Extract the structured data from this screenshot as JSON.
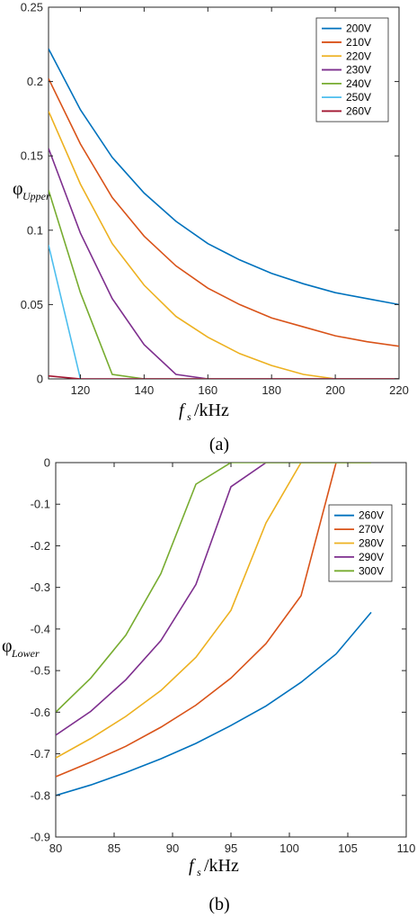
{
  "chart_data": [
    {
      "type": "line",
      "caption": "(a)",
      "ylabel_main": "φ",
      "ylabel_sub": "Upper",
      "xlabel_main": "f",
      "xlabel_sub": "s",
      "xlabel_unit": "/kHz",
      "xlim": [
        110,
        220
      ],
      "ylim": [
        0,
        0.25
      ],
      "xticks": [
        120,
        140,
        160,
        180,
        200,
        220
      ],
      "yticks": [
        0,
        0.05,
        0.1,
        0.15,
        0.2,
        0.25
      ],
      "xtick_labels": [
        "120",
        "140",
        "160",
        "180",
        "200",
        "220"
      ],
      "ytick_labels": [
        "0",
        "0.05",
        "0.1",
        "0.15",
        "0.2",
        "0.25"
      ],
      "legend_position": "top-right",
      "grid": false,
      "series": [
        {
          "name": "200V",
          "color": "#0072BD",
          "x": [
            110,
            120,
            130,
            140,
            150,
            160,
            170,
            180,
            190,
            200,
            210,
            220
          ],
          "y": [
            0.222,
            0.181,
            0.149,
            0.125,
            0.106,
            0.091,
            0.08,
            0.071,
            0.064,
            0.058,
            0.054,
            0.05
          ]
        },
        {
          "name": "210V",
          "color": "#D95319",
          "x": [
            110,
            120,
            130,
            140,
            150,
            160,
            170,
            180,
            190,
            200,
            210,
            220
          ],
          "y": [
            0.202,
            0.158,
            0.122,
            0.096,
            0.076,
            0.061,
            0.05,
            0.041,
            0.035,
            0.029,
            0.025,
            0.022
          ]
        },
        {
          "name": "220V",
          "color": "#EDB120",
          "x": [
            110,
            120,
            130,
            140,
            150,
            160,
            170,
            180,
            190,
            200,
            210,
            220
          ],
          "y": [
            0.18,
            0.131,
            0.091,
            0.063,
            0.042,
            0.028,
            0.017,
            0.009,
            0.003,
            0,
            0,
            0
          ]
        },
        {
          "name": "230V",
          "color": "#7E2F8E",
          "x": [
            110,
            120,
            130,
            140,
            150,
            160,
            170,
            180,
            190,
            200,
            210,
            220
          ],
          "y": [
            0.155,
            0.098,
            0.054,
            0.023,
            0.003,
            0,
            0,
            0,
            0,
            0,
            0,
            0
          ]
        },
        {
          "name": "240V",
          "color": "#77AC30",
          "x": [
            110,
            120,
            130,
            140,
            150,
            160,
            170,
            180,
            190,
            200,
            210,
            220
          ],
          "y": [
            0.127,
            0.058,
            0.003,
            0,
            0,
            0,
            0,
            0,
            0,
            0,
            0,
            0
          ]
        },
        {
          "name": "250V",
          "color": "#4DBEEE",
          "x": [
            110,
            120,
            130,
            140,
            150,
            160,
            170,
            180,
            190,
            200,
            210,
            220
          ],
          "y": [
            0.09,
            0,
            0,
            0,
            0,
            0,
            0,
            0,
            0,
            0,
            0,
            0
          ]
        },
        {
          "name": "260V",
          "color": "#A2142F",
          "x": [
            110,
            120,
            130,
            140,
            150,
            160,
            170,
            180,
            190,
            200,
            210,
            220
          ],
          "y": [
            0.002,
            0,
            0,
            0,
            0,
            0,
            0,
            0,
            0,
            0,
            0,
            0
          ]
        }
      ]
    },
    {
      "type": "line",
      "caption": "(b)",
      "ylabel_main": "φ",
      "ylabel_sub": "Lower",
      "xlabel_main": "f",
      "xlabel_sub": "s",
      "xlabel_unit": "/kHz",
      "xlim": [
        80,
        110
      ],
      "ylim": [
        -0.9,
        0
      ],
      "xticks": [
        80,
        85,
        90,
        95,
        100,
        105,
        110
      ],
      "yticks": [
        0,
        -0.1,
        -0.2,
        -0.3,
        -0.4,
        -0.5,
        -0.6,
        -0.7,
        -0.8,
        -0.9
      ],
      "xtick_labels": [
        "80",
        "85",
        "90",
        "95",
        "100",
        "105",
        "110"
      ],
      "ytick_labels": [
        "0",
        "-0.1",
        "-0.2",
        "-0.3",
        "-0.4",
        "-0.5",
        "-0.6",
        "-0.7",
        "-0.8",
        "-0.9"
      ],
      "legend_position": "right",
      "grid": false,
      "series": [
        {
          "name": "260V",
          "color": "#0072BD",
          "x": [
            80,
            83,
            86,
            89,
            92,
            95,
            98,
            101,
            104,
            107
          ],
          "y": [
            -0.8,
            -0.775,
            -0.745,
            -0.712,
            -0.675,
            -0.632,
            -0.585,
            -0.528,
            -0.46,
            -0.36
          ]
        },
        {
          "name": "270V",
          "color": "#D95319",
          "x": [
            80,
            83,
            86,
            89,
            92,
            95,
            98,
            101,
            104
          ],
          "y": [
            -0.755,
            -0.72,
            -0.682,
            -0.636,
            -0.583,
            -0.518,
            -0.435,
            -0.32,
            0
          ]
        },
        {
          "name": "280V",
          "color": "#EDB120",
          "x": [
            80,
            83,
            86,
            89,
            92,
            95,
            98,
            101,
            104,
            107
          ],
          "y": [
            -0.71,
            -0.663,
            -0.61,
            -0.548,
            -0.468,
            -0.355,
            -0.145,
            0,
            0,
            0
          ]
        },
        {
          "name": "290V",
          "color": "#7E2F8E",
          "x": [
            80,
            83,
            86,
            89,
            92,
            95,
            98,
            101,
            104,
            107
          ],
          "y": [
            -0.655,
            -0.598,
            -0.522,
            -0.428,
            -0.293,
            -0.058,
            0,
            0,
            0,
            0
          ]
        },
        {
          "name": "300V",
          "color": "#77AC30",
          "x": [
            80,
            83,
            86,
            89,
            92,
            95,
            98,
            101,
            104,
            107
          ],
          "y": [
            -0.6,
            -0.518,
            -0.415,
            -0.267,
            -0.052,
            0,
            0,
            0,
            0,
            0
          ]
        }
      ]
    }
  ]
}
